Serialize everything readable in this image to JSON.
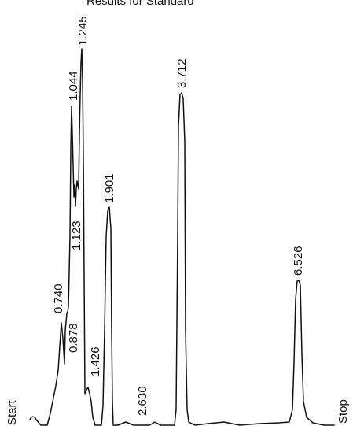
{
  "header_text": "Results for Standard",
  "chart_data": {
    "type": "line",
    "title": "",
    "xlabel": "",
    "ylabel": "",
    "start_label": "Start",
    "stop_label": "Stop",
    "peaks": [
      {
        "label": "0.740",
        "time": 0.74
      },
      {
        "label": "0.878",
        "time": 0.878
      },
      {
        "label": "1.044",
        "time": 1.044
      },
      {
        "label": "1.123",
        "time": 1.123
      },
      {
        "label": "1.245",
        "time": 1.245
      },
      {
        "label": "1.426",
        "time": 1.426
      },
      {
        "label": "1.901",
        "time": 1.901
      },
      {
        "label": "2.630",
        "time": 2.63
      },
      {
        "label": "3.712",
        "time": 3.712
      },
      {
        "label": "6.526",
        "time": 6.526
      }
    ]
  }
}
